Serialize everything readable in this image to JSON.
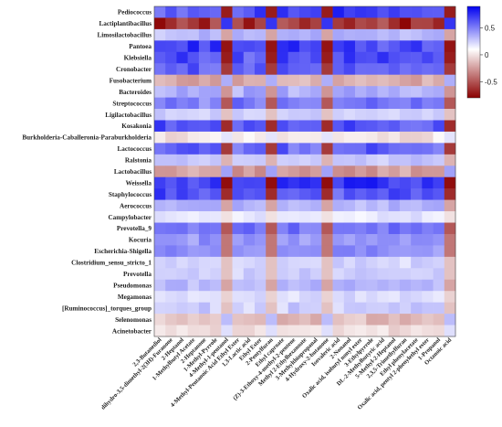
{
  "chart_data": {
    "type": "heatmap",
    "rows": [
      "Pediococcus",
      "Lactiplantibacillus",
      "Limosilactobacillus",
      "Pantoea",
      "Klebsiella",
      "Cronobacter",
      "Fusobacterium",
      "Bacteroides",
      "Streptococcus",
      "Ligilactobacillus",
      "Kosakonia",
      "Burkholderia-Caballeronia-Paraburkholderia",
      "Lactococcus",
      "Ralstonia",
      "Lactobacillus",
      "Weissella",
      "Staphylococcus",
      "Aerococcus",
      "Campylobacter",
      "Prevotella_9",
      "Kocuria",
      "Escherichia-Shigella",
      "Clostridium_sensu_stricto_1",
      "Prevotella",
      "Pseudomonas",
      "Megamonas",
      "[Ruminococcus]_torques_group",
      "Selenomonas",
      "Acinetobacter"
    ],
    "columns": [
      "2,3-Butanediol",
      "dihydro-3,5-dimethyl-2(3H)-Furanone",
      "2-Heptanol",
      "1-Methylbutyl Acetate",
      "2-Heptanone",
      "1-Methyl-Pyrrole",
      "4-Methyl-1-pentanol",
      "4-Methyl-Pentanoic Acid Ethyl Ester",
      "1,3-Lactic acid",
      "Ethyl Ester",
      "2-Pentylfuran",
      "Ethyl caproate",
      "(Z)-3-Ethoxy-4-methyl-2-pentene",
      "Methyl 2-Ethylhexanoate",
      "3-Methylthiopropanal",
      "4-Hydroxy-2-butanone",
      "Isovaleric acid",
      "2-Nonanol",
      "Oxalic acid, isobutyl nonyl ester",
      "3-Ethylpyrrole",
      "DL-2-Methylbutyric acid",
      "5-Methyl-2-Heptanol",
      "2,3,5-Trimethylfuran",
      "Ethyl phenylacetate",
      "Oxalic acid, pentyl 2-phenylethyl ester",
      "1-Propanol",
      "Octanoic acid"
    ],
    "colorbar": {
      "min": -0.8,
      "max": 0.9,
      "ticks": [
        0.5,
        0,
        -0.5
      ],
      "tick_labels": [
        "0.5",
        "0",
        "-0.5"
      ]
    },
    "colors": {
      "positive": "#0000f0",
      "neutral": "#ffffff",
      "negative": "#8b0000"
    },
    "row_profiles": {
      "Pediococcus": 0.75,
      "Lactiplantibacillus": -0.75,
      "Limosilactobacillus": 0.3,
      "Pantoea": 0.78,
      "Klebsiella": 0.75,
      "Cronobacter": 0.65,
      "Fusobacterium": -0.3,
      "Bacteroides": 0.35,
      "Streptococcus": 0.55,
      "Ligilactobacillus": 0.2,
      "Kosakonia": 0.7,
      "Burkholderia-Caballeronia-Paraburkholderia": -0.1,
      "Lactococcus": 0.65,
      "Ralstonia": 0.25,
      "Lactobacillus": -0.35,
      "Weissella": 0.8,
      "Staphylococcus": 0.7,
      "Aerococcus": 0.3,
      "Campylobacter": 0.1,
      "Prevotella_9": 0.55,
      "Kocuria": 0.45,
      "Escherichia-Shigella": 0.45,
      "Clostridium_sensu_stricto_1": 0.2,
      "Prevotella": 0.2,
      "Pseudomonas": 0.3,
      "Megamonas": 0.15,
      "[Ruminococcus]_torques_group": 0.2,
      "Selenomonas": -0.25,
      "Acinetobacter": -0.12
    },
    "inverted_columns": [
      6,
      10,
      15,
      26
    ],
    "xlabel": "",
    "ylabel": "",
    "title": "",
    "grid": false,
    "legend": "colorbar-right"
  }
}
